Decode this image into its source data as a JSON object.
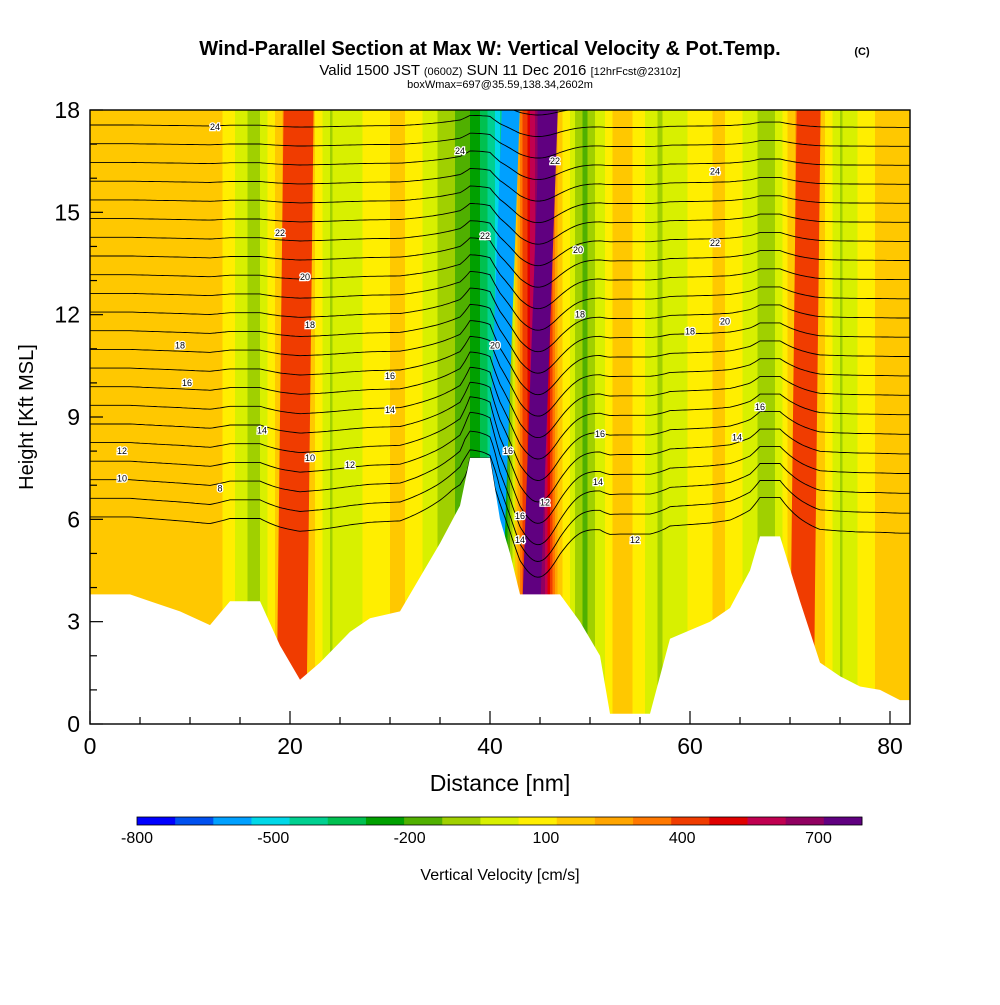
{
  "header": {
    "title": "Wind-Parallel Section at Max W: Vertical Velocity & Pot.Temp.",
    "copyright": "(C)",
    "subtitle_valid": "Valid 1500 JST",
    "subtitle_utc": "(0600Z)",
    "subtitle_date": "SUN 11 Dec 2016",
    "subtitle_fcst": "[12hrFcst@2310z]",
    "box_info": "boxWmax=697@35.59,138.34,2602m"
  },
  "chart_data": {
    "type": "heatmap",
    "xlabel": "Distance [nm]",
    "ylabel": "Height [Kft MSL]",
    "xlim": [
      0,
      82
    ],
    "ylim": [
      0,
      18
    ],
    "x_ticks": [
      "0",
      "20",
      "40",
      "60",
      "80"
    ],
    "y_ticks": [
      "0",
      "3",
      "6",
      "9",
      "12",
      "15",
      "18"
    ],
    "colorbar": {
      "label": "Vertical Velocity [cm/s]",
      "tick_labels": [
        "-800",
        "-500",
        "-200",
        "100",
        "400",
        "700"
      ],
      "tick_values": [
        -800,
        -500,
        -200,
        100,
        400,
        700
      ],
      "colors": [
        "#0000ff",
        "#0050f0",
        "#00a0ff",
        "#00d8e8",
        "#00d090",
        "#00c050",
        "#00a000",
        "#50b000",
        "#a0d000",
        "#d8f000",
        "#ffee00",
        "#ffc800",
        "#ffa500",
        "#ff7800",
        "#f03c00",
        "#e00000",
        "#c00050",
        "#900060",
        "#600080"
      ]
    },
    "velocity_bands_cm_s": [
      {
        "x": 2,
        "value": 100
      },
      {
        "x": 7,
        "value": 100
      },
      {
        "x": 13,
        "value": 100
      },
      {
        "x": 16.5,
        "value": -150
      },
      {
        "x": 20.5,
        "value": 280
      },
      {
        "x": 24,
        "value": -100
      },
      {
        "x": 31,
        "value": 100
      },
      {
        "x": 38,
        "value": -250
      },
      {
        "x": 41,
        "value": -550
      },
      {
        "x": 43.2,
        "value": 300
      },
      {
        "x": 45,
        "value": 690
      },
      {
        "x": 47,
        "value": 100
      },
      {
        "x": 49.5,
        "value": -200
      },
      {
        "x": 53,
        "value": 150
      },
      {
        "x": 57,
        "value": -100
      },
      {
        "x": 63,
        "value": 100
      },
      {
        "x": 68,
        "value": -150
      },
      {
        "x": 71.5,
        "value": 280
      },
      {
        "x": 75,
        "value": -100
      },
      {
        "x": 79,
        "value": 100
      }
    ],
    "terrain": [
      [
        0,
        3.8
      ],
      [
        4,
        3.8
      ],
      [
        6,
        3.6
      ],
      [
        9,
        3.3
      ],
      [
        12,
        2.9
      ],
      [
        14,
        3.6
      ],
      [
        17,
        3.6
      ],
      [
        19,
        2.3
      ],
      [
        21,
        1.3
      ],
      [
        23,
        1.8
      ],
      [
        26,
        2.7
      ],
      [
        28,
        3.1
      ],
      [
        31,
        3.3
      ],
      [
        33,
        4.3
      ],
      [
        35,
        5.3
      ],
      [
        37,
        6.4
      ],
      [
        38,
        7.8
      ],
      [
        40,
        7.8
      ],
      [
        41,
        6.0
      ],
      [
        42,
        5.0
      ],
      [
        43,
        3.8
      ],
      [
        45,
        3.8
      ],
      [
        47,
        3.8
      ],
      [
        49,
        3.0
      ],
      [
        51,
        2.0
      ],
      [
        52,
        0.3
      ],
      [
        56,
        0.3
      ],
      [
        57,
        1.4
      ],
      [
        58,
        2.5
      ],
      [
        62,
        3.0
      ],
      [
        64,
        3.4
      ],
      [
        66,
        4.5
      ],
      [
        67,
        5.5
      ],
      [
        69,
        5.5
      ],
      [
        71,
        3.6
      ],
      [
        73,
        1.8
      ],
      [
        75,
        1.4
      ],
      [
        77,
        1.1
      ],
      [
        79,
        1.0
      ],
      [
        81,
        0.7
      ],
      [
        82,
        0.7
      ]
    ],
    "isentropes": {
      "levels": [
        6,
        8,
        10,
        12,
        14,
        16,
        18,
        20,
        22,
        24
      ],
      "labels": [
        {
          "x": 12.5,
          "y": 17.5,
          "text": "24"
        },
        {
          "x": 37,
          "y": 16.8,
          "text": "24"
        },
        {
          "x": 62.5,
          "y": 16.2,
          "text": "24"
        },
        {
          "x": 19,
          "y": 14.4,
          "text": "22"
        },
        {
          "x": 39.5,
          "y": 14.3,
          "text": "22"
        },
        {
          "x": 46.5,
          "y": 16.5,
          "text": "22"
        },
        {
          "x": 62.5,
          "y": 14.1,
          "text": "22"
        },
        {
          "x": 21.5,
          "y": 13.1,
          "text": "20"
        },
        {
          "x": 40.5,
          "y": 11.1,
          "text": "20"
        },
        {
          "x": 48.8,
          "y": 13.9,
          "text": "20"
        },
        {
          "x": 63.5,
          "y": 11.8,
          "text": "20"
        },
        {
          "x": 22,
          "y": 11.7,
          "text": "18"
        },
        {
          "x": 9,
          "y": 11.1,
          "text": "18"
        },
        {
          "x": 49,
          "y": 12.0,
          "text": "18"
        },
        {
          "x": 60,
          "y": 11.5,
          "text": "18"
        },
        {
          "x": 9.7,
          "y": 10.0,
          "text": "16"
        },
        {
          "x": 30,
          "y": 10.2,
          "text": "16"
        },
        {
          "x": 41.8,
          "y": 8.0,
          "text": "16"
        },
        {
          "x": 43,
          "y": 6.1,
          "text": "16"
        },
        {
          "x": 51,
          "y": 8.5,
          "text": "16"
        },
        {
          "x": 67,
          "y": 9.3,
          "text": "16"
        },
        {
          "x": 17.2,
          "y": 8.6,
          "text": "14"
        },
        {
          "x": 30,
          "y": 9.2,
          "text": "14"
        },
        {
          "x": 43,
          "y": 5.4,
          "text": "14"
        },
        {
          "x": 50.8,
          "y": 7.1,
          "text": "14"
        },
        {
          "x": 64.7,
          "y": 8.4,
          "text": "14"
        },
        {
          "x": 3.2,
          "y": 8.0,
          "text": "12"
        },
        {
          "x": 26,
          "y": 7.6,
          "text": "12"
        },
        {
          "x": 45.5,
          "y": 6.5,
          "text": "12"
        },
        {
          "x": 54.5,
          "y": 5.4,
          "text": "12"
        },
        {
          "x": 3.2,
          "y": 7.2,
          "text": "10"
        },
        {
          "x": 22,
          "y": 7.8,
          "text": "10"
        },
        {
          "x": 13,
          "y": 6.9,
          "text": "8"
        }
      ]
    }
  }
}
